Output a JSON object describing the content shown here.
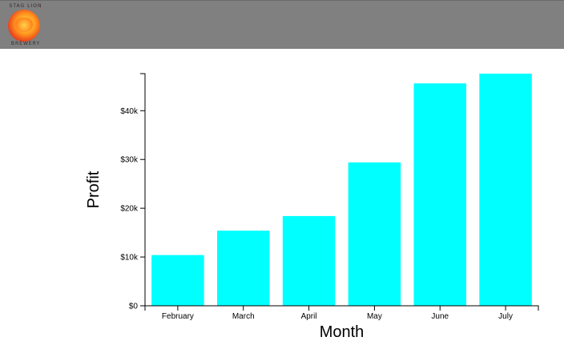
{
  "header": {
    "logo_text_top": "STAG LION",
    "logo_text_bottom": "BREWERY",
    "background_color": "#808080"
  },
  "chart_data": {
    "type": "bar",
    "categories": [
      "February",
      "March",
      "April",
      "May",
      "June",
      "July"
    ],
    "values": [
      10400,
      15400,
      18400,
      29400,
      45600,
      47600
    ],
    "xlabel": "Month",
    "ylabel": "Profit",
    "ylim": [
      0,
      47600
    ],
    "yticks": [
      0,
      10000,
      20000,
      30000,
      40000
    ],
    "ytick_labels": [
      "$0",
      "$10k",
      "$20k",
      "$30k",
      "$40k"
    ],
    "bar_color": "#00ffff",
    "grid": false
  }
}
